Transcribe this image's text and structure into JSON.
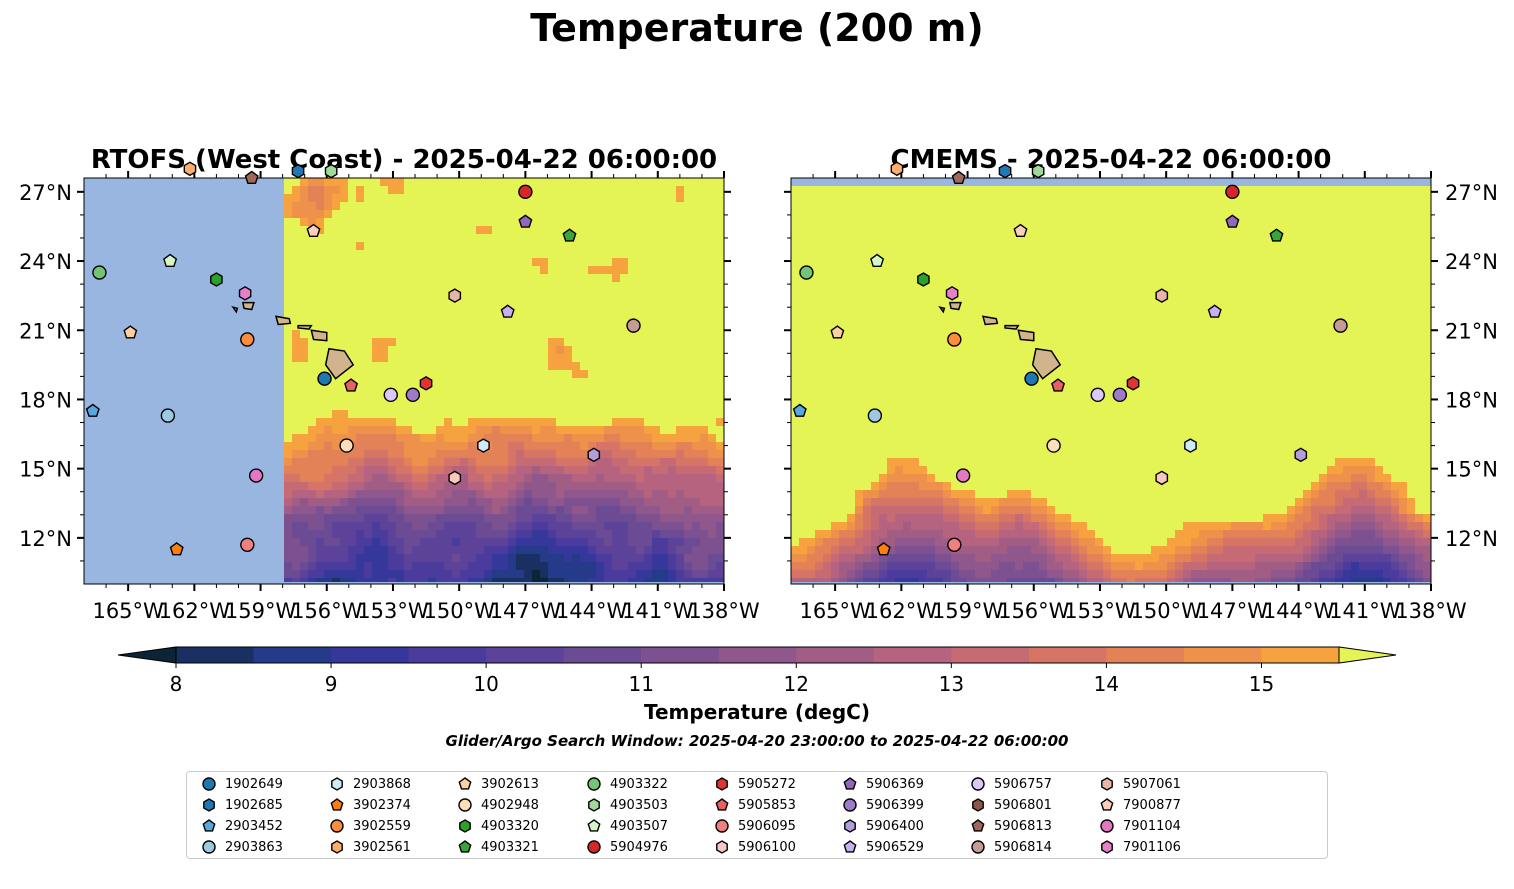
{
  "figure": {
    "title": "Temperature (200 m)",
    "colorbar_label": "Temperature (degC)",
    "search_window": "Glider/Argo Search Window: 2025-04-20 23:00:00 to 2025-04-22 06:00:00"
  },
  "colors": {
    "land": "#d2b48c",
    "masked_ocean": "#98b6e0",
    "colormap": [
      "#0d2436",
      "#1a3063",
      "#263a8a",
      "#35389a",
      "#4a3b9c",
      "#5c4399",
      "#6c4b95",
      "#7d5190",
      "#8f578b",
      "#a25d85",
      "#b5637e",
      "#c66a73",
      "#d67565",
      "#e48257",
      "#ee914a",
      "#f6a23f",
      "#fbb93d",
      "#f8d448",
      "#e5f455"
    ]
  },
  "chart_data": [
    {
      "type": "heatmap",
      "title": "RTOFS (West Coast) - 2025-04-22 06:00:00",
      "xlabel": "",
      "ylabel": "",
      "xlim": [
        -167,
        -138
      ],
      "ylim": [
        10,
        27.6
      ],
      "x_ticks": [
        "165°W",
        "162°W",
        "159°W",
        "156°W",
        "153°W",
        "150°W",
        "147°W",
        "144°W",
        "141°W",
        "138°W"
      ],
      "y_ticks": [
        "27°N",
        "24°N",
        "21°N",
        "18°N",
        "15°N",
        "12°N"
      ],
      "y_tick_side": "left",
      "data_coverage_west_edge_lon": -157.9,
      "field_description": "warm (>15 degC) north of ~18N; cooler 10-13 degC water south of ~17N, coolest near 147W,10-13N"
    },
    {
      "type": "heatmap",
      "title": "CMEMS - 2025-04-22 06:00:00",
      "xlabel": "",
      "ylabel": "",
      "xlim": [
        -167,
        -138
      ],
      "ylim": [
        10,
        27.6
      ],
      "x_ticks": [
        "165°W",
        "162°W",
        "159°W",
        "156°W",
        "153°W",
        "150°W",
        "147°W",
        "144°W",
        "141°W",
        "138°W"
      ],
      "y_ticks": [
        "27°N",
        "24°N",
        "21°N",
        "18°N",
        "15°N",
        "12°N"
      ],
      "y_tick_side": "right",
      "data_coverage_north_edge_lat": 27.1,
      "field_description": "warm (>15 degC) north of ~15N; cool 10-12 degC band south of ~14N"
    },
    {
      "type": "colorbar",
      "ticks": [
        "8",
        "9",
        "10",
        "11",
        "12",
        "13",
        "14",
        "15"
      ],
      "vmin": 7.65,
      "vmax": 15.85,
      "levels_min": 8.0,
      "levels_max": 15.5,
      "step": 0.5,
      "extend": "both"
    },
    {
      "type": "scatter",
      "series": [
        {
          "name": "1902649",
          "marker": "circle",
          "color": "#1f77b4",
          "lon": -156.1,
          "lat": 18.9
        },
        {
          "name": "1902685",
          "marker": "hexagon",
          "color": "#1f77b4",
          "lon": -157.3,
          "lat": 27.9
        },
        {
          "name": "2903452",
          "marker": "pentagon",
          "color": "#5aa7de",
          "lon": -166.6,
          "lat": 17.5
        },
        {
          "name": "2903863",
          "marker": "circle",
          "color": "#9ecae1",
          "lon": -163.2,
          "lat": 17.3
        },
        {
          "name": "2903868",
          "marker": "hexagon",
          "color": "#cfeaf7",
          "lon": -148.9,
          "lat": 16.0
        },
        {
          "name": "3902374",
          "marker": "pentagon",
          "color": "#ff7f0e",
          "lon": -162.8,
          "lat": 11.5
        },
        {
          "name": "3902559",
          "marker": "circle",
          "color": "#fd8d3c",
          "lon": -159.6,
          "lat": 20.6
        },
        {
          "name": "3902561",
          "marker": "hexagon",
          "color": "#fdae6b",
          "lon": -162.2,
          "lat": 28.0
        },
        {
          "name": "3902613",
          "marker": "pentagon",
          "color": "#fdd0a2",
          "lon": -164.9,
          "lat": 20.9
        },
        {
          "name": "4902948",
          "marker": "circle",
          "color": "#feddbb",
          "lon": -155.1,
          "lat": 16.0
        },
        {
          "name": "4903320",
          "marker": "hexagon",
          "color": "#2ca02c",
          "lon": -161.0,
          "lat": 23.2
        },
        {
          "name": "4903321",
          "marker": "pentagon",
          "color": "#3aa63a",
          "lon": -145.0,
          "lat": 25.1
        },
        {
          "name": "4903322",
          "marker": "circle",
          "color": "#74c476",
          "lon": -166.3,
          "lat": 23.5
        },
        {
          "name": "4903503",
          "marker": "hexagon",
          "color": "#a1d99b",
          "lon": -155.8,
          "lat": 27.9
        },
        {
          "name": "4903507",
          "marker": "pentagon",
          "color": "#d4f7c6",
          "lon": -163.1,
          "lat": 24.0
        },
        {
          "name": "5904976",
          "marker": "circle",
          "color": "#d62728",
          "lon": -147.0,
          "lat": 27.0
        },
        {
          "name": "5905272",
          "marker": "hexagon",
          "color": "#e03434",
          "lon": -151.5,
          "lat": 18.7
        },
        {
          "name": "5905853",
          "marker": "pentagon",
          "color": "#e86060",
          "lon": -154.9,
          "lat": 18.6
        },
        {
          "name": "5906095",
          "marker": "circle",
          "color": "#f08080",
          "lon": -159.6,
          "lat": 11.7
        },
        {
          "name": "5906100",
          "marker": "hexagon",
          "color": "#f8c8c0",
          "lon": -150.2,
          "lat": 14.6
        },
        {
          "name": "5906369",
          "marker": "pentagon",
          "color": "#9467bd",
          "lon": -147.0,
          "lat": 25.7
        },
        {
          "name": "5906399",
          "marker": "circle",
          "color": "#9e7bc8",
          "lon": -152.1,
          "lat": 18.2
        },
        {
          "name": "5906400",
          "marker": "hexagon",
          "color": "#b39ddb",
          "lon": -143.9,
          "lat": 15.6
        },
        {
          "name": "5906529",
          "marker": "pentagon",
          "color": "#c5b0f0",
          "lon": -147.8,
          "lat": 21.8
        },
        {
          "name": "5906757",
          "marker": "circle",
          "color": "#dcc8f7",
          "lon": -153.1,
          "lat": 18.2
        },
        {
          "name": "5906801",
          "marker": "hexagon",
          "color": "#8c564b",
          "lon": -159.3,
          "lat": 28.5
        },
        {
          "name": "5906813",
          "marker": "pentagon",
          "color": "#a0685a",
          "lon": -159.4,
          "lat": 27.6
        },
        {
          "name": "5906814",
          "marker": "circle",
          "color": "#c49c94",
          "lon": -142.1,
          "lat": 21.2
        },
        {
          "name": "5907061",
          "marker": "hexagon",
          "color": "#e8b6a8",
          "lon": -150.2,
          "lat": 22.5
        },
        {
          "name": "7900877",
          "marker": "pentagon",
          "color": "#fccfbd",
          "lon": -156.6,
          "lat": 25.3
        },
        {
          "name": "7901104",
          "marker": "circle",
          "color": "#e377c2",
          "lon": -159.2,
          "lat": 14.7
        },
        {
          "name": "7901106",
          "marker": "hexagon",
          "color": "#e680c9",
          "lon": -159.7,
          "lat": 22.6
        }
      ]
    }
  ]
}
